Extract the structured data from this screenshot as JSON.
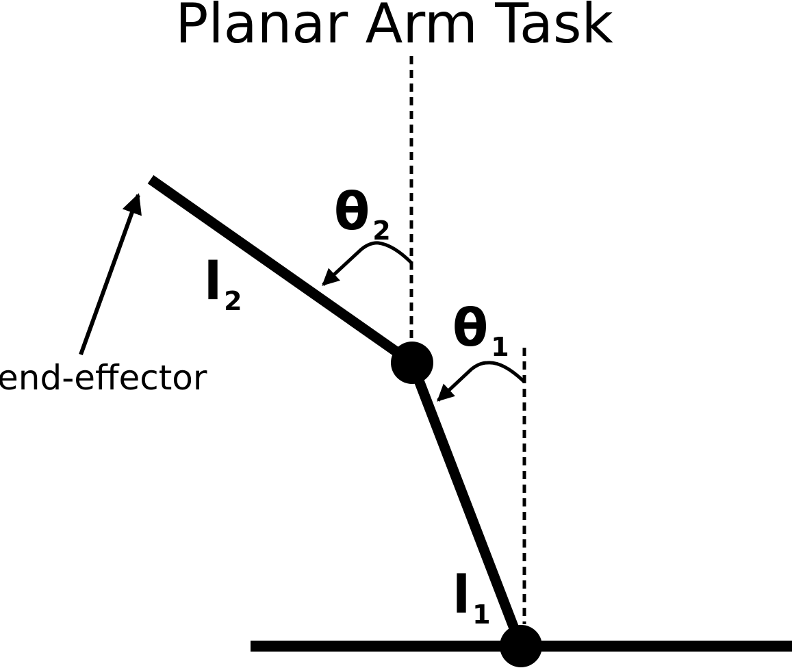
{
  "title": "Planar Arm Task",
  "labels": {
    "theta2": {
      "symbol": "θ",
      "subscript": "2"
    },
    "theta1": {
      "symbol": "θ",
      "subscript": "1"
    },
    "link2": {
      "symbol": "l",
      "subscript": "2"
    },
    "link1": {
      "symbol": "l",
      "subscript": "1"
    },
    "end_effector": "end-effector"
  },
  "colors": {
    "ink": "#000000",
    "background": "#ffffff"
  }
}
